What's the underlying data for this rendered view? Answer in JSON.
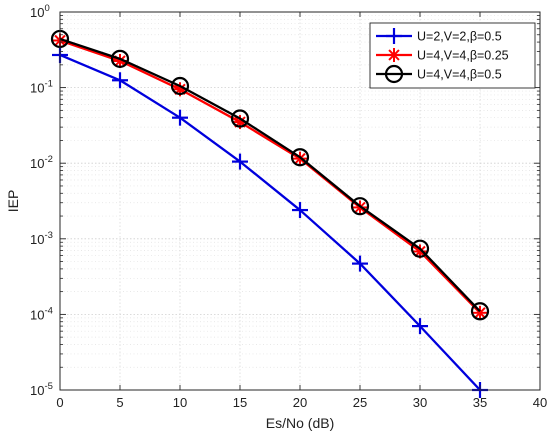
{
  "chart_data": {
    "type": "line",
    "title": "",
    "xlabel": "Es/No (dB)",
    "ylabel": "IEP",
    "xscale": "linear",
    "yscale": "log",
    "xlim": [
      0,
      40
    ],
    "ylim": [
      1e-05,
      1
    ],
    "xticks": [
      0,
      5,
      10,
      15,
      20,
      25,
      30,
      35,
      40
    ],
    "yticks": [
      {
        "value": 1,
        "base": "10",
        "exp": "0"
      },
      {
        "value": 0.1,
        "base": "10",
        "exp": "-1"
      },
      {
        "value": 0.01,
        "base": "10",
        "exp": "-2"
      },
      {
        "value": 0.001,
        "base": "10",
        "exp": "-3"
      },
      {
        "value": 0.0001,
        "base": "10",
        "exp": "-4"
      },
      {
        "value": 1e-05,
        "base": "10",
        "exp": "-5"
      }
    ],
    "grid": true,
    "minor_grid": true,
    "legend_position": "top-right",
    "series": [
      {
        "name": "U=2,V=2,β=0.5",
        "color": "#0000dd",
        "marker": "plus",
        "x": [
          0,
          5,
          10,
          15,
          20,
          25,
          30,
          35
        ],
        "y": [
          0.27,
          0.125,
          0.04,
          0.0105,
          0.0024,
          0.00047,
          7e-05,
          1e-05
        ]
      },
      {
        "name": "U=4,V=4,β=0.25",
        "color": "#ff0000",
        "marker": "asterisk",
        "x": [
          0,
          5,
          10,
          15,
          20,
          25,
          30,
          35
        ],
        "y": [
          0.42,
          0.225,
          0.095,
          0.035,
          0.0115,
          0.0026,
          0.00068,
          0.000105
        ]
      },
      {
        "name": "U=4,V=4,β=0.5",
        "color": "#000000",
        "marker": "circle",
        "x": [
          0,
          5,
          10,
          15,
          20,
          25,
          30,
          35
        ],
        "y": [
          0.44,
          0.24,
          0.105,
          0.039,
          0.012,
          0.0027,
          0.00074,
          0.00011
        ]
      }
    ]
  }
}
